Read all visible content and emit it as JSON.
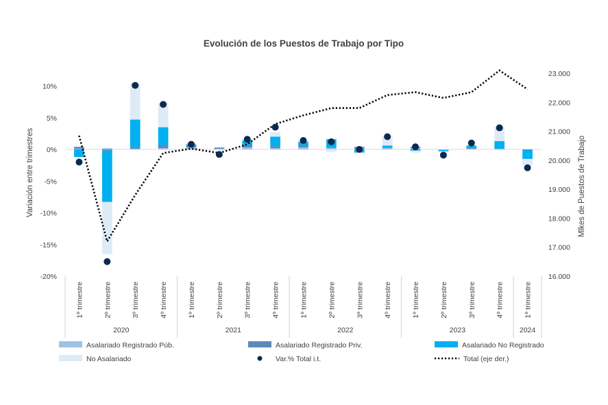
{
  "chart_data": {
    "type": "bar",
    "title": "Evolución de los Puestos de Trabajo por Tipo",
    "ylabel_left": "Variación entre trimestres",
    "ylabel_right": "Mlkes de Puestos de Trabajo",
    "ylim_left": [
      -20,
      12
    ],
    "yticks_left": [
      "-20%",
      "-15%",
      "-10%",
      "-5%",
      "0%",
      "5%",
      "10%"
    ],
    "ylim_right": [
      16000,
      23000
    ],
    "yticks_right": [
      "16.000",
      "17.000",
      "18.000",
      "19.000",
      "20.000",
      "21.000",
      "22.000",
      "23.000"
    ],
    "categories": [
      "1º trimestre",
      "2º trimestre",
      "3º trimestre",
      "4º trimestre",
      "1º trimestre",
      "2º trimestre",
      "3º trimestre",
      "4º trimestre",
      "1º trimestre",
      "2º trimestre",
      "3º trimestre",
      "4º trimestre",
      "1º trimestre",
      "2º trimestre",
      "3º trimestre",
      "4º trimestre",
      "1º trimestre"
    ],
    "year_groups": [
      {
        "label": "2020",
        "count": 4
      },
      {
        "label": "2021",
        "count": 4
      },
      {
        "label": "2022",
        "count": 4
      },
      {
        "label": "2023",
        "count": 4
      },
      {
        "label": "2024",
        "count": 1
      }
    ],
    "series": [
      {
        "name": "Asalariado Registrado Púb.",
        "kind": "bar",
        "color": "#9dc3e6",
        "values": [
          0.1,
          0.2,
          0.1,
          0.2,
          0.3,
          0.1,
          0.3,
          0.2,
          0.3,
          0.2,
          0.1,
          0.2,
          0.2,
          -0.1,
          0.1,
          0.1,
          0.0
        ]
      },
      {
        "name": "Asalariado Registrado Priv.",
        "kind": "bar",
        "color": "#5b8ab8",
        "values": [
          0.3,
          -0.2,
          0.3,
          0.5,
          0.3,
          0.1,
          0.4,
          0.3,
          0.4,
          0.1,
          0.3,
          0.1,
          0.2,
          0.0,
          0.2,
          0.0,
          -0.1
        ]
      },
      {
        "name": "Asalariado No Registrado",
        "kind": "bar",
        "color": "#00b0f0",
        "values": [
          -1.2,
          -8.1,
          4.3,
          2.8,
          0.2,
          0.1,
          0.7,
          1.5,
          0.5,
          1.3,
          -0.5,
          0.3,
          -0.2,
          -0.2,
          0.3,
          1.2,
          -1.4
        ]
      },
      {
        "name": "No Asalariado",
        "kind": "bar",
        "color": "#ddebf7",
        "values": [
          0.0,
          -8.2,
          5.7,
          3.8,
          0.3,
          -0.1,
          0.3,
          0.7,
          0.3,
          -0.4,
          -0.1,
          1.5,
          -0.3,
          -0.1,
          0.0,
          2.2,
          -1.0
        ]
      },
      {
        "name": "Var.% Total i.t.",
        "kind": "dot",
        "color": "#0b2a4f",
        "values": [
          -2.0,
          -17.7,
          10.1,
          7.1,
          0.8,
          -0.8,
          1.6,
          3.5,
          1.4,
          1.2,
          0.0,
          2.0,
          0.4,
          -0.9,
          1.0,
          3.4,
          -2.9
        ]
      },
      {
        "name": "Total (eje der.)",
        "kind": "line",
        "axis": "right",
        "color": "#000000",
        "values": [
          20850,
          17200,
          18800,
          20250,
          20400,
          20250,
          20550,
          21250,
          21550,
          21800,
          21800,
          22250,
          22350,
          22150,
          22350,
          23100,
          22450
        ]
      }
    ]
  }
}
